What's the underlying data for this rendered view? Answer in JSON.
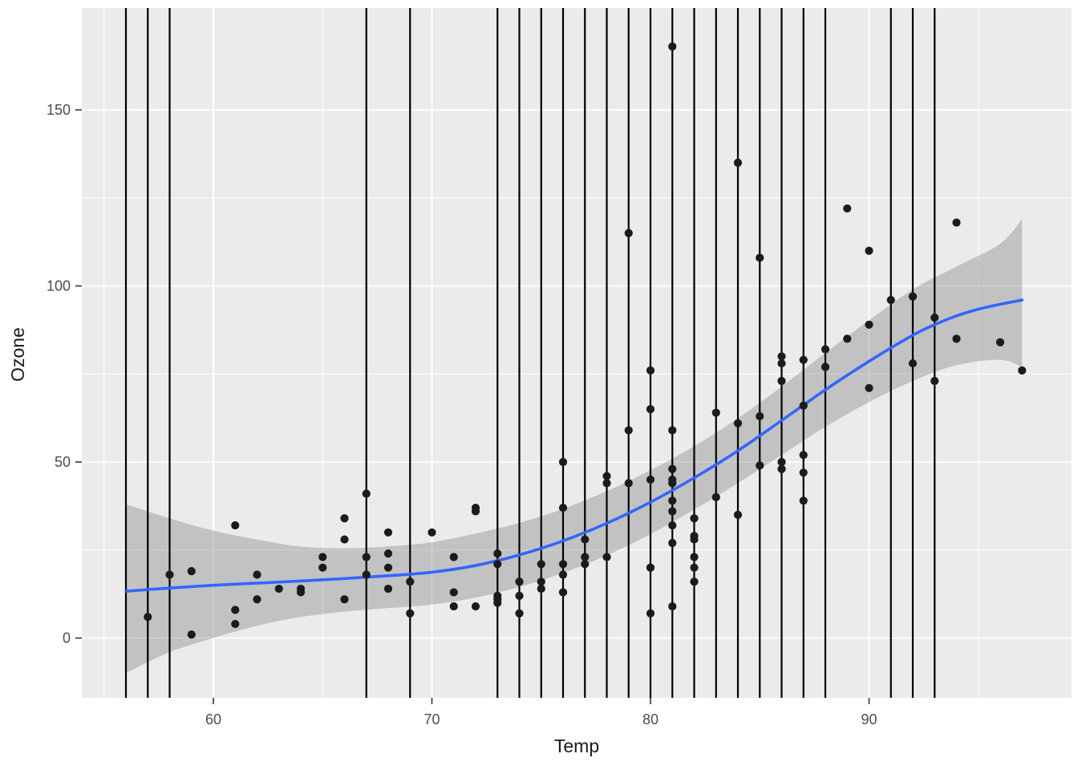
{
  "chart_data": {
    "type": "scatter",
    "title": "",
    "xlabel": "Temp",
    "ylabel": "Ozone",
    "x_ticks": [
      60,
      70,
      80,
      90
    ],
    "x_minor_gridlines": [
      55,
      65,
      75,
      85,
      95
    ],
    "y_ticks": [
      0,
      50,
      100,
      150
    ],
    "y_minor_gridlines": [
      25,
      75,
      125
    ],
    "xlim": [
      53.98,
      99.27
    ],
    "ylim": [
      -17,
      179
    ],
    "grid": true,
    "legend_position": "none",
    "points_xy_temp_ozone": [
      [
        57,
        6
      ],
      [
        58,
        18
      ],
      [
        59,
        19
      ],
      [
        59,
        1
      ],
      [
        61,
        32
      ],
      [
        61,
        8
      ],
      [
        61,
        4
      ],
      [
        62,
        18
      ],
      [
        62,
        11
      ],
      [
        63,
        14
      ],
      [
        64,
        14
      ],
      [
        64,
        13
      ],
      [
        65,
        23
      ],
      [
        65,
        20
      ],
      [
        66,
        34
      ],
      [
        66,
        28
      ],
      [
        66,
        11
      ],
      [
        67,
        41
      ],
      [
        67,
        23
      ],
      [
        67,
        18
      ],
      [
        68,
        30
      ],
      [
        68,
        24
      ],
      [
        68,
        20
      ],
      [
        68,
        14
      ],
      [
        69,
        16
      ],
      [
        69,
        7
      ],
      [
        70,
        30
      ],
      [
        71,
        23
      ],
      [
        71,
        13
      ],
      [
        71,
        9
      ],
      [
        72,
        37
      ],
      [
        72,
        36
      ],
      [
        72,
        9
      ],
      [
        73,
        24
      ],
      [
        73,
        21
      ],
      [
        73,
        12
      ],
      [
        73,
        11
      ],
      [
        73,
        10
      ],
      [
        74,
        16
      ],
      [
        74,
        12
      ],
      [
        74,
        7
      ],
      [
        75,
        21
      ],
      [
        75,
        16
      ],
      [
        75,
        14
      ],
      [
        76,
        50
      ],
      [
        76,
        37
      ],
      [
        76,
        21
      ],
      [
        76,
        18
      ],
      [
        76,
        13
      ],
      [
        76,
        13
      ],
      [
        77,
        28
      ],
      [
        77,
        23
      ],
      [
        77,
        21
      ],
      [
        78,
        46
      ],
      [
        78,
        44
      ],
      [
        78,
        23
      ],
      [
        79,
        115
      ],
      [
        79,
        59
      ],
      [
        79,
        44
      ],
      [
        80,
        76
      ],
      [
        80,
        65
      ],
      [
        80,
        45
      ],
      [
        80,
        20
      ],
      [
        80,
        20
      ],
      [
        80,
        7
      ],
      [
        81,
        168
      ],
      [
        81,
        59
      ],
      [
        81,
        48
      ],
      [
        81,
        45
      ],
      [
        81,
        44
      ],
      [
        81,
        39
      ],
      [
        81,
        36
      ],
      [
        81,
        32
      ],
      [
        81,
        27
      ],
      [
        81,
        9
      ],
      [
        82,
        34
      ],
      [
        82,
        29
      ],
      [
        82,
        28
      ],
      [
        82,
        23
      ],
      [
        82,
        20
      ],
      [
        82,
        16
      ],
      [
        83,
        64
      ],
      [
        83,
        40
      ],
      [
        84,
        135
      ],
      [
        84,
        61
      ],
      [
        84,
        35
      ],
      [
        85,
        108
      ],
      [
        85,
        63
      ],
      [
        85,
        49
      ],
      [
        86,
        80
      ],
      [
        86,
        78
      ],
      [
        86,
        73
      ],
      [
        86,
        50
      ],
      [
        86,
        48
      ],
      [
        87,
        79
      ],
      [
        87,
        66
      ],
      [
        87,
        52
      ],
      [
        87,
        47
      ],
      [
        87,
        39
      ],
      [
        88,
        82
      ],
      [
        88,
        77
      ],
      [
        89,
        122
      ],
      [
        89,
        85
      ],
      [
        90,
        110
      ],
      [
        90,
        89
      ],
      [
        90,
        71
      ],
      [
        91,
        96
      ],
      [
        92,
        97
      ],
      [
        92,
        97
      ],
      [
        92,
        78
      ],
      [
        93,
        91
      ],
      [
        93,
        73
      ],
      [
        94,
        118
      ],
      [
        94,
        85
      ],
      [
        96,
        84
      ],
      [
        97,
        76
      ]
    ],
    "smooth_line_temp_ozone": [
      [
        56,
        13.3
      ],
      [
        58,
        14.2
      ],
      [
        60,
        15.0
      ],
      [
        62,
        15.6
      ],
      [
        64,
        16.2
      ],
      [
        66,
        16.9
      ],
      [
        68,
        17.7
      ],
      [
        70,
        18.7
      ],
      [
        72,
        20.6
      ],
      [
        74,
        23.6
      ],
      [
        76,
        27.6
      ],
      [
        78,
        32.6
      ],
      [
        80,
        38.6
      ],
      [
        82,
        45.5
      ],
      [
        84,
        53.2
      ],
      [
        86,
        61.8
      ],
      [
        88,
        70.5
      ],
      [
        90,
        78.6
      ],
      [
        92,
        86.0
      ],
      [
        93,
        89.0
      ],
      [
        94,
        91.5
      ],
      [
        95,
        93.4
      ],
      [
        96,
        94.8
      ],
      [
        97,
        96.0
      ]
    ],
    "ribbon_temp_lower_upper": [
      [
        56,
        -10,
        38
      ],
      [
        58,
        -4,
        34
      ],
      [
        60,
        0,
        30.5
      ],
      [
        62,
        3.5,
        28
      ],
      [
        64,
        6,
        26
      ],
      [
        66,
        7.5,
        25.5
      ],
      [
        68,
        8.5,
        26
      ],
      [
        70,
        9.5,
        27.2
      ],
      [
        72,
        11.5,
        29.7
      ],
      [
        74,
        14.5,
        32.7
      ],
      [
        76,
        18.5,
        36.7
      ],
      [
        78,
        23.5,
        41.7
      ],
      [
        80,
        29.5,
        47.7
      ],
      [
        82,
        36.5,
        54.5
      ],
      [
        84,
        44,
        62.4
      ],
      [
        86,
        52,
        71.4
      ],
      [
        88,
        60,
        81
      ],
      [
        90,
        67,
        90.2
      ],
      [
        92,
        73,
        99
      ],
      [
        94,
        77.5,
        105.5
      ],
      [
        96,
        79,
        112
      ],
      [
        97,
        77,
        119
      ]
    ],
    "vertical_lines_temp": [
      56,
      57,
      58,
      67,
      69,
      73,
      74,
      75,
      76,
      77,
      78,
      79,
      80,
      81,
      82,
      83,
      84,
      85,
      86,
      87,
      88,
      91,
      92,
      93
    ],
    "colors": {
      "panel_background": "#EBEBEB",
      "grid_major": "#FFFFFF",
      "grid_minor": "#FFFFFF",
      "point": "#1B1B1B",
      "smooth_line": "#3366FF",
      "ribbon": "rgba(100,100,100,0.30)",
      "vline": "#000000",
      "tick_label": "#4D4D4D",
      "axis_title": "#1A1A1A"
    }
  }
}
